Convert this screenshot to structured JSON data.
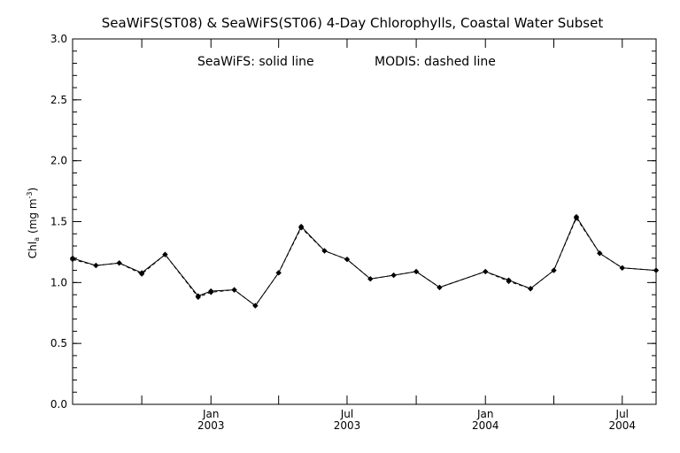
{
  "chart_data": {
    "type": "line",
    "title": "SeaWiFS(ST08) & SeaWiFS(ST06) 4-Day Chlorophylls, Coastal Water Subset",
    "annotation_solid": "SeaWiFS: solid line",
    "annotation_dashed": "MODIS: dashed line",
    "ylabel_main": "Chl",
    "ylabel_sub": "a",
    "ylabel_unit": "(mg m",
    "ylabel_exp": "-3",
    "ylabel_close": ")",
    "ylim": [
      0.0,
      3.0
    ],
    "yticks": [
      {
        "value": 0.0,
        "label": "0.0"
      },
      {
        "value": 0.5,
        "label": "0.5"
      },
      {
        "value": 1.0,
        "label": "1.0"
      },
      {
        "value": 1.5,
        "label": "1.5"
      },
      {
        "value": 2.0,
        "label": "2.0"
      },
      {
        "value": 2.5,
        "label": "2.5"
      },
      {
        "value": 3.0,
        "label": "3.0"
      }
    ],
    "xlim": [
      "2002-07-01",
      "2004-08-15"
    ],
    "xticks_major": [
      {
        "date": "2003-01-01",
        "month": "Jan",
        "year": "2003"
      },
      {
        "date": "2003-07-01",
        "month": "Jul",
        "year": "2003"
      },
      {
        "date": "2004-01-01",
        "month": "Jan",
        "year": "2004"
      },
      {
        "date": "2004-07-01",
        "month": "Jul",
        "year": "2004"
      }
    ],
    "xticks_minor": [
      "2002-10-01",
      "2003-04-01",
      "2003-10-01",
      "2004-04-01"
    ],
    "series": [
      {
        "style": "solid",
        "color": "#000000",
        "points": [
          {
            "x": "2002-07-01",
            "y": 1.2
          },
          {
            "x": "2002-08-01",
            "y": 1.14
          },
          {
            "x": "2002-09-01",
            "y": 1.16
          },
          {
            "x": "2002-10-01",
            "y": 1.08
          },
          {
            "x": "2002-11-01",
            "y": 1.23
          },
          {
            "x": "2002-12-15",
            "y": 0.89
          },
          {
            "x": "2003-01-01",
            "y": 0.93
          },
          {
            "x": "2003-02-01",
            "y": 0.94
          },
          {
            "x": "2003-03-01",
            "y": 0.81
          },
          {
            "x": "2003-04-01",
            "y": 1.08
          },
          {
            "x": "2003-05-01",
            "y": 1.46
          },
          {
            "x": "2003-06-01",
            "y": 1.26
          },
          {
            "x": "2003-07-01",
            "y": 1.19
          },
          {
            "x": "2003-08-01",
            "y": 1.03
          },
          {
            "x": "2003-09-01",
            "y": 1.06
          },
          {
            "x": "2003-10-01",
            "y": 1.09
          },
          {
            "x": "2003-11-01",
            "y": 0.96
          },
          {
            "x": "2004-01-01",
            "y": 1.09
          },
          {
            "x": "2004-02-01",
            "y": 1.02
          },
          {
            "x": "2004-03-01",
            "y": 0.95
          },
          {
            "x": "2004-04-01",
            "y": 1.1
          },
          {
            "x": "2004-05-01",
            "y": 1.54
          },
          {
            "x": "2004-06-01",
            "y": 1.24
          },
          {
            "x": "2004-07-01",
            "y": 1.12
          },
          {
            "x": "2004-08-15",
            "y": 1.1
          }
        ]
      },
      {
        "style": "dashed",
        "color": "#000000",
        "points": [
          {
            "x": "2002-07-01",
            "y": 1.19
          },
          {
            "x": "2002-08-01",
            "y": 1.14
          },
          {
            "x": "2002-09-01",
            "y": 1.16
          },
          {
            "x": "2002-10-01",
            "y": 1.07
          },
          {
            "x": "2002-11-01",
            "y": 1.23
          },
          {
            "x": "2002-12-15",
            "y": 0.88
          },
          {
            "x": "2003-01-01",
            "y": 0.92
          },
          {
            "x": "2003-02-01",
            "y": 0.94
          },
          {
            "x": "2003-03-01",
            "y": 0.81
          },
          {
            "x": "2003-04-01",
            "y": 1.08
          },
          {
            "x": "2003-05-01",
            "y": 1.45
          },
          {
            "x": "2003-06-01",
            "y": 1.26
          },
          {
            "x": "2003-07-01",
            "y": 1.19
          },
          {
            "x": "2003-08-01",
            "y": 1.03
          },
          {
            "x": "2003-09-01",
            "y": 1.06
          },
          {
            "x": "2003-10-01",
            "y": 1.09
          },
          {
            "x": "2003-11-01",
            "y": 0.96
          },
          {
            "x": "2004-01-01",
            "y": 1.09
          },
          {
            "x": "2004-02-01",
            "y": 1.01
          },
          {
            "x": "2004-03-01",
            "y": 0.95
          },
          {
            "x": "2004-04-01",
            "y": 1.1
          },
          {
            "x": "2004-05-01",
            "y": 1.53
          },
          {
            "x": "2004-06-01",
            "y": 1.24
          },
          {
            "x": "2004-07-01",
            "y": 1.12
          },
          {
            "x": "2004-08-15",
            "y": 1.1
          }
        ]
      }
    ]
  }
}
